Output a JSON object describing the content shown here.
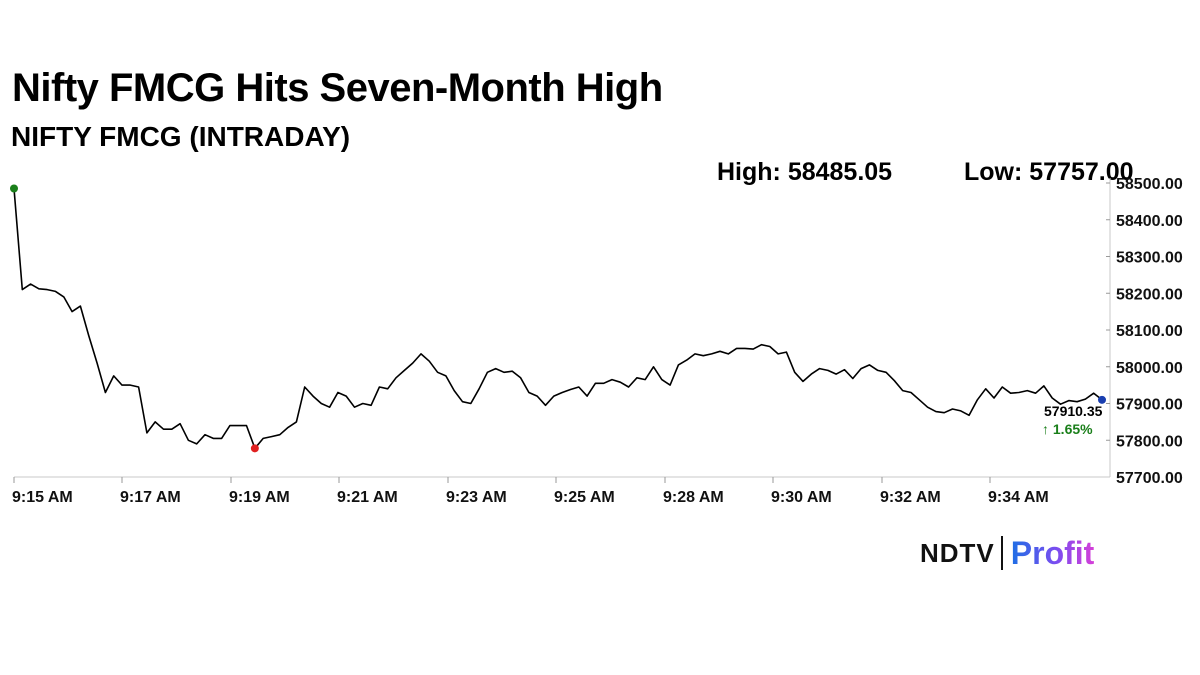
{
  "header": {
    "title": "Nifty FMCG Hits Seven-Month High",
    "subtitle": "NIFTY FMCG (INTRADAY)"
  },
  "stats": {
    "high_label": "High: 58485.05",
    "low_label": "Low: 57757.00"
  },
  "brand": {
    "name_part1": "NDTV",
    "name_part2": "Profit"
  },
  "chart_data": {
    "type": "line",
    "title": "NIFTY FMCG (INTRADAY)",
    "xlabel": "",
    "ylabel": "",
    "ylim": [
      57700,
      58500
    ],
    "y_ticks": [
      58500,
      58400,
      58300,
      58200,
      58100,
      58000,
      57900,
      57800,
      57700
    ],
    "y_tick_labels": [
      "58500.00",
      "58400.00",
      "58300.00",
      "58200.00",
      "58100.00",
      "58000.00",
      "57900.00",
      "57800.00",
      "57700.00"
    ],
    "x_tick_labels": [
      "9:15 AM",
      "9:17 AM",
      "9:19 AM",
      "9:21 AM",
      "9:23 AM",
      "9:25 AM",
      "9:28 AM",
      "9:30 AM",
      "9:32 AM",
      "9:34 AM"
    ],
    "grid": false,
    "colors": {
      "line": "#000000",
      "high_marker": "#1a7f1a",
      "low_marker": "#e02020",
      "last_marker": "#1a3fb0",
      "change_text": "#1a7f1a"
    },
    "last_value_label": "57910.35",
    "change_label": "↑ 1.65%",
    "series": [
      {
        "values": [
          58485,
          58210,
          58225,
          58212,
          58210,
          58205,
          58190,
          58150,
          58165,
          58085,
          58010,
          57930,
          57975,
          57950,
          57950,
          57945,
          57820,
          57850,
          57830,
          57830,
          57845,
          57800,
          57790,
          57815,
          57805,
          57805,
          57840,
          57840,
          57840,
          57778,
          57805,
          57810,
          57815,
          57835,
          57850,
          57945,
          57920,
          57900,
          57890,
          57930,
          57920,
          57890,
          57900,
          57895,
          57945,
          57940,
          57970,
          57990,
          58010,
          58035,
          58015,
          57985,
          57975,
          57935,
          57905,
          57900,
          57940,
          57985,
          57995,
          57985,
          57988,
          57970,
          57930,
          57920,
          57895,
          57920,
          57930,
          57938,
          57945,
          57920,
          57955,
          57955,
          57965,
          57958,
          57945,
          57970,
          57965,
          58000,
          57965,
          57950,
          58005,
          58018,
          58035,
          58030,
          58035,
          58042,
          58035,
          58050,
          58050,
          58048,
          58060,
          58055,
          58035,
          58040,
          57985,
          57960,
          57980,
          57995,
          57990,
          57980,
          57992,
          57968,
          57995,
          58005,
          57990,
          57985,
          57962,
          57935,
          57930,
          57910,
          57890,
          57878,
          57875,
          57885,
          57880,
          57868,
          57910,
          57940,
          57915,
          57945,
          57928,
          57930,
          57935,
          57928,
          57948,
          57915,
          57898,
          57908,
          57905,
          57912,
          57928,
          57910
        ]
      }
    ]
  }
}
